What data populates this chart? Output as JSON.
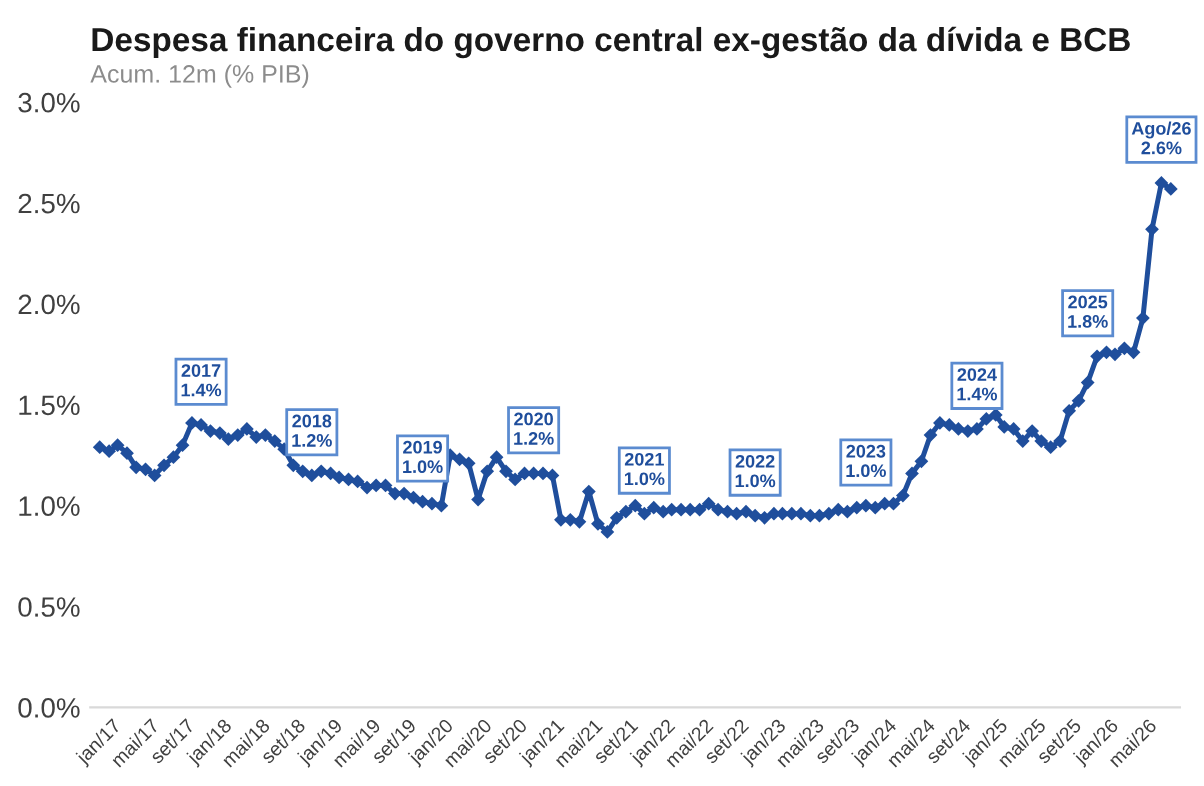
{
  "chart_data": {
    "type": "line",
    "title": "Despesa financeira do governo central ex-gestão da dívida e BCB",
    "subtitle": "Acum. 12m (% PIB)",
    "x": [
      "2017-01",
      "2017-02",
      "2017-03",
      "2017-04",
      "2017-05",
      "2017-06",
      "2017-07",
      "2017-08",
      "2017-09",
      "2017-10",
      "2017-11",
      "2017-12",
      "2018-01",
      "2018-02",
      "2018-03",
      "2018-04",
      "2018-05",
      "2018-06",
      "2018-07",
      "2018-08",
      "2018-09",
      "2018-10",
      "2018-11",
      "2018-12",
      "2019-01",
      "2019-02",
      "2019-03",
      "2019-04",
      "2019-05",
      "2019-06",
      "2019-07",
      "2019-08",
      "2019-09",
      "2019-10",
      "2019-11",
      "2019-12",
      "2020-01",
      "2020-02",
      "2020-03",
      "2020-04",
      "2020-05",
      "2020-06",
      "2020-07",
      "2020-08",
      "2020-09",
      "2020-10",
      "2020-11",
      "2020-12",
      "2021-01",
      "2021-02",
      "2021-03",
      "2021-04",
      "2021-05",
      "2021-06",
      "2021-07",
      "2021-08",
      "2021-09",
      "2021-10",
      "2021-11",
      "2021-12",
      "2022-01",
      "2022-02",
      "2022-03",
      "2022-04",
      "2022-05",
      "2022-06",
      "2022-07",
      "2022-08",
      "2022-09",
      "2022-10",
      "2022-11",
      "2022-12",
      "2023-01",
      "2023-02",
      "2023-03",
      "2023-04",
      "2023-05",
      "2023-06",
      "2023-07",
      "2023-08",
      "2023-09",
      "2023-10",
      "2023-11",
      "2023-12",
      "2024-01",
      "2024-02",
      "2024-03",
      "2024-04",
      "2024-05",
      "2024-06",
      "2024-07",
      "2024-08",
      "2024-09",
      "2024-10",
      "2024-11",
      "2024-12",
      "2025-01",
      "2025-02",
      "2025-03",
      "2025-04",
      "2025-05",
      "2025-06",
      "2025-07",
      "2025-08",
      "2025-09",
      "2025-10",
      "2025-11",
      "2025-12",
      "2026-01",
      "2026-02",
      "2026-03",
      "2026-04",
      "2026-05",
      "2026-06",
      "2026-07",
      "2026-08",
      "2026-09"
    ],
    "series": [
      {
        "color": "#1f4e9c",
        "values": [
          1.29,
          1.27,
          1.3,
          1.26,
          1.19,
          1.18,
          1.15,
          1.2,
          1.24,
          1.3,
          1.41,
          1.4,
          1.37,
          1.36,
          1.33,
          1.35,
          1.38,
          1.34,
          1.35,
          1.32,
          1.28,
          1.2,
          1.17,
          1.15,
          1.17,
          1.16,
          1.14,
          1.13,
          1.12,
          1.09,
          1.1,
          1.1,
          1.06,
          1.06,
          1.04,
          1.02,
          1.01,
          1.0,
          1.25,
          1.23,
          1.21,
          1.03,
          1.17,
          1.24,
          1.17,
          1.13,
          1.16,
          1.16,
          1.16,
          1.15,
          0.93,
          0.93,
          0.92,
          1.07,
          0.91,
          0.87,
          0.94,
          0.97,
          1.0,
          0.96,
          0.99,
          0.97,
          0.98,
          0.98,
          0.98,
          0.98,
          1.01,
          0.98,
          0.97,
          0.96,
          0.97,
          0.95,
          0.94,
          0.96,
          0.96,
          0.96,
          0.96,
          0.95,
          0.95,
          0.96,
          0.98,
          0.97,
          0.99,
          1.0,
          0.99,
          1.01,
          1.01,
          1.05,
          1.16,
          1.22,
          1.35,
          1.41,
          1.4,
          1.38,
          1.37,
          1.38,
          1.43,
          1.45,
          1.39,
          1.38,
          1.32,
          1.37,
          1.32,
          1.29,
          1.32,
          1.47,
          1.52,
          1.61,
          1.74,
          1.76,
          1.75,
          1.78,
          1.76,
          1.93,
          2.37,
          2.6,
          2.57
        ]
      }
    ],
    "xlim": [
      "2016-12",
      "2026-10"
    ],
    "xticks": [
      {
        "value": "2017-01",
        "label": "jan/17"
      },
      {
        "value": "2017-05",
        "label": "mai/17"
      },
      {
        "value": "2017-09",
        "label": "set/17"
      },
      {
        "value": "2018-01",
        "label": "jan/18"
      },
      {
        "value": "2018-05",
        "label": "mai/18"
      },
      {
        "value": "2018-09",
        "label": "set/18"
      },
      {
        "value": "2019-01",
        "label": "jan/19"
      },
      {
        "value": "2019-05",
        "label": "mai/19"
      },
      {
        "value": "2019-09",
        "label": "set/19"
      },
      {
        "value": "2020-01",
        "label": "jan/20"
      },
      {
        "value": "2020-05",
        "label": "mai/20"
      },
      {
        "value": "2020-09",
        "label": "set/20"
      },
      {
        "value": "2021-01",
        "label": "jan/21"
      },
      {
        "value": "2021-05",
        "label": "mai/21"
      },
      {
        "value": "2021-09",
        "label": "set/21"
      },
      {
        "value": "2022-01",
        "label": "jan/22"
      },
      {
        "value": "2022-05",
        "label": "mai/22"
      },
      {
        "value": "2022-09",
        "label": "set/22"
      },
      {
        "value": "2023-01",
        "label": "jan/23"
      },
      {
        "value": "2023-05",
        "label": "mai/23"
      },
      {
        "value": "2023-09",
        "label": "set/23"
      },
      {
        "value": "2024-01",
        "label": "jan/24"
      },
      {
        "value": "2024-05",
        "label": "mai/24"
      },
      {
        "value": "2024-09",
        "label": "set/24"
      },
      {
        "value": "2025-01",
        "label": "jan/25"
      },
      {
        "value": "2025-05",
        "label": "mai/25"
      },
      {
        "value": "2025-09",
        "label": "set/25"
      },
      {
        "value": "2026-01",
        "label": "jan/26"
      },
      {
        "value": "2026-05",
        "label": "mai/26"
      }
    ],
    "ylim": [
      0,
      3.0
    ],
    "yticks": [
      {
        "value": 0,
        "label": "0.0%"
      },
      {
        "value": 0.5,
        "label": "0.5%"
      },
      {
        "value": 1.0,
        "label": "1.0%"
      },
      {
        "value": 1.5,
        "label": "1.5%"
      },
      {
        "value": 2.0,
        "label": "2.0%"
      },
      {
        "value": 2.5,
        "label": "2.5%"
      },
      {
        "value": 3.0,
        "label": "3.0%"
      }
    ],
    "grid": false,
    "legend": false,
    "marker": "diamond",
    "line_style": "solid",
    "annotations": [
      {
        "text": "2017\n1.4%",
        "x": "2017-12",
        "y": 1.4
      },
      {
        "text": "2018\n1.2%",
        "x": "2018-12",
        "y": 1.15
      },
      {
        "text": "2019\n1.0%",
        "x": "2019-12",
        "y": 1.02
      },
      {
        "text": "2020\n1.2%",
        "x": "2020-12",
        "y": 1.16
      },
      {
        "text": "2021\n1.0%",
        "x": "2021-12",
        "y": 0.96
      },
      {
        "text": "2022\n1.0%",
        "x": "2022-12",
        "y": 0.95
      },
      {
        "text": "2023\n1.0%",
        "x": "2023-12",
        "y": 1.0
      },
      {
        "text": "2024\n1.4%",
        "x": "2024-12",
        "y": 1.38
      },
      {
        "text": "2025\n1.8%",
        "x": "2025-12",
        "y": 1.74
      },
      {
        "text": "Ago/26\n2.6%",
        "x": "2026-08",
        "y": 2.6
      }
    ]
  }
}
